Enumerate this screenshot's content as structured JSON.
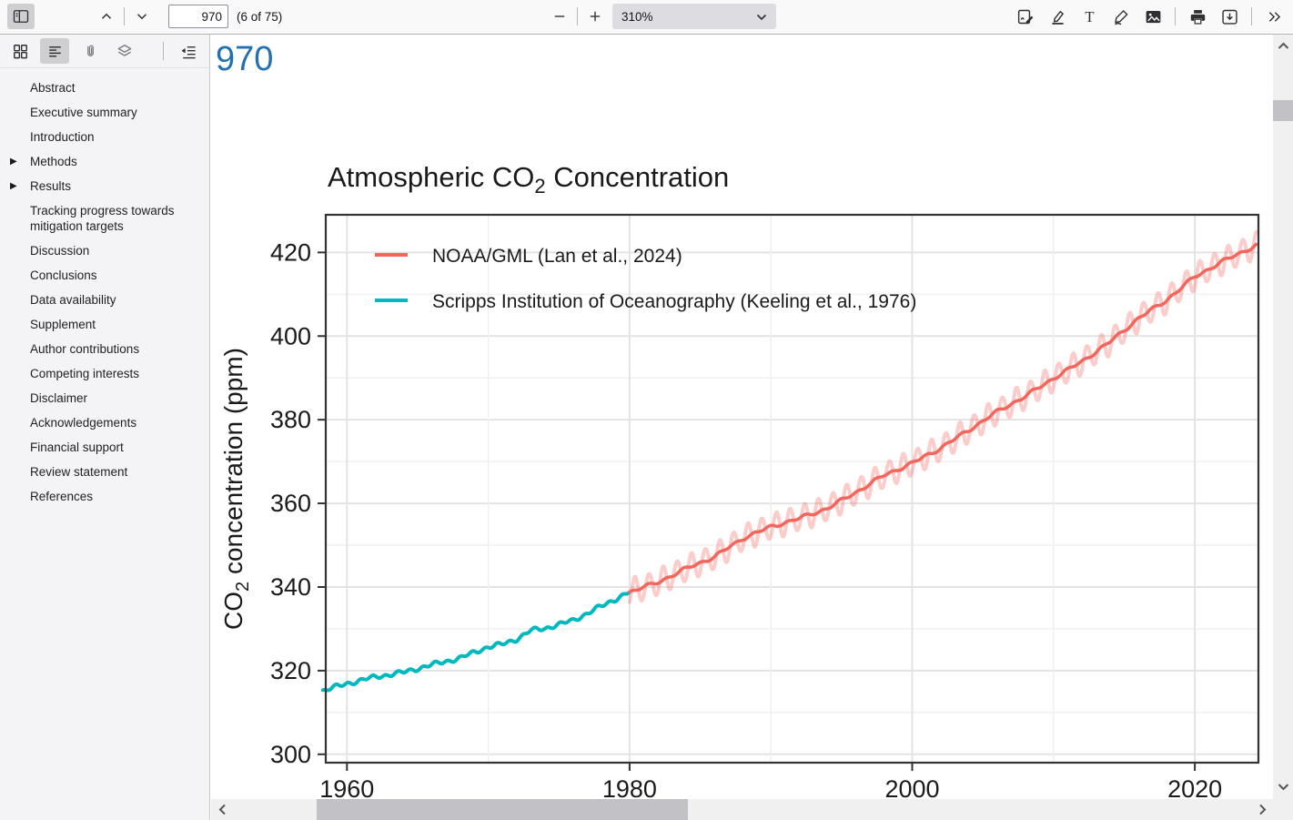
{
  "toolbar": {
    "page_input": "970",
    "page_count_label": "(6 of 75)",
    "zoom_value": "310%",
    "left_icons": [
      "toggle-sidebar",
      "previous-page",
      "next-page"
    ],
    "zoom_icons": [
      "zoom-out",
      "zoom-in"
    ],
    "right_icons": [
      "signature",
      "highlight",
      "add-text",
      "draw",
      "add-image",
      "print",
      "save",
      "more-tools"
    ]
  },
  "sidebar": {
    "toolbar_icons": [
      "thumbnails",
      "outline",
      "attachments",
      "layers",
      "current-outline-item"
    ],
    "items": [
      {
        "label": "Abstract",
        "expandable": false
      },
      {
        "label": "Executive summary",
        "expandable": false
      },
      {
        "label": "Introduction",
        "expandable": false
      },
      {
        "label": "Methods",
        "expandable": true
      },
      {
        "label": "Results",
        "expandable": true
      },
      {
        "label": "Tracking progress towards mitigation targets",
        "expandable": false
      },
      {
        "label": "Discussion",
        "expandable": false
      },
      {
        "label": "Conclusions",
        "expandable": false
      },
      {
        "label": "Data availability",
        "expandable": false
      },
      {
        "label": "Supplement",
        "expandable": false
      },
      {
        "label": "Author contributions",
        "expandable": false
      },
      {
        "label": "Competing interests",
        "expandable": false
      },
      {
        "label": "Disclaimer",
        "expandable": false
      },
      {
        "label": "Acknowledgements",
        "expandable": false
      },
      {
        "label": "Financial support",
        "expandable": false
      },
      {
        "label": "Review statement",
        "expandable": false
      },
      {
        "label": "References",
        "expandable": false
      }
    ]
  },
  "page": {
    "page_number_text": "970"
  },
  "chart_data": {
    "type": "line",
    "title": {
      "pre": "Atmospheric CO",
      "sub": "2",
      "post": " Concentration"
    },
    "ylabel": {
      "pre": "CO",
      "sub": "2",
      "post": " concentration (ppm)"
    },
    "xlabel": "",
    "xlim": [
      1958.5,
      2024.5
    ],
    "ylim": [
      298,
      429
    ],
    "x_ticks": [
      1960,
      1980,
      2000,
      2020
    ],
    "y_ticks": [
      300,
      320,
      340,
      360,
      380,
      400,
      420
    ],
    "x_minor_step": 10,
    "y_minor_step": 10,
    "grid": true,
    "legend_position": "top-left-inside",
    "panel_border_color": "#333333",
    "series": [
      {
        "name": "NOAA/GML (Lan et al., 2024)",
        "color": "#f4655c",
        "style": "trend-with-monthly-band",
        "seasonal_amplitude_ppm": 3,
        "x": [
          1980,
          1982,
          1984,
          1986,
          1988,
          1990,
          1992,
          1994,
          1996,
          1998,
          2000,
          2002,
          2004,
          2006,
          2008,
          2010,
          2012,
          2014,
          2016,
          2018,
          2020,
          2022,
          2024.4
        ],
        "y": [
          338.8,
          341.1,
          344.4,
          347.2,
          351.6,
          354.4,
          356.4,
          358.8,
          362.6,
          366.7,
          369.6,
          373.2,
          377.5,
          381.9,
          385.6,
          389.9,
          393.9,
          398.6,
          404.2,
          408.6,
          414.2,
          417.9,
          421.8
        ]
      },
      {
        "name": "Scripps Institution of Oceanography (Keeling et al., 1976)",
        "color": "#00b9be",
        "style": "trend",
        "x": [
          1958.3,
          1960,
          1962,
          1964,
          1966,
          1968,
          1970,
          1971,
          1972,
          1973,
          1974,
          1976,
          1978,
          1980
        ],
        "y": [
          315.2,
          316.9,
          318.5,
          319.6,
          321.4,
          323.0,
          325.7,
          326.3,
          327.5,
          329.6,
          330.1,
          332.0,
          335.4,
          338.8
        ]
      }
    ]
  }
}
